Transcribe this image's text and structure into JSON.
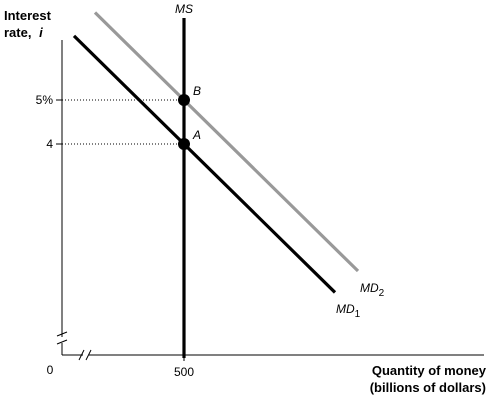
{
  "chart_data": {
    "type": "line",
    "ylabel_line1": "Interest",
    "ylabel_line2": "rate,",
    "ylabel_symbol": "i",
    "xlabel_line1": "Quantity of money",
    "xlabel_line2": "(billions of dollars)",
    "x_origin_label": "0",
    "x_ticks": [
      {
        "value": 500,
        "label": "500"
      }
    ],
    "y_ticks": [
      {
        "value": 5,
        "label": "5%"
      },
      {
        "value": 4,
        "label": "4"
      }
    ],
    "axis_breaks": true,
    "series": [
      {
        "name": "MS",
        "label_base": "MS",
        "label_sub": "",
        "color": "#000000",
        "kind": "vertical",
        "x": 500
      },
      {
        "name": "MD1",
        "label_base": "MD",
        "label_sub": "1",
        "color": "#000000",
        "kind": "line",
        "passes_through": {
          "x": 500,
          "y": 4
        }
      },
      {
        "name": "MD2",
        "label_base": "MD",
        "label_sub": "2",
        "color": "#999999",
        "kind": "line",
        "passes_through": {
          "x": 500,
          "y": 5
        }
      }
    ],
    "points": [
      {
        "label": "A",
        "x": 500,
        "y": 4
      },
      {
        "label": "B",
        "x": 500,
        "y": 5
      }
    ]
  }
}
